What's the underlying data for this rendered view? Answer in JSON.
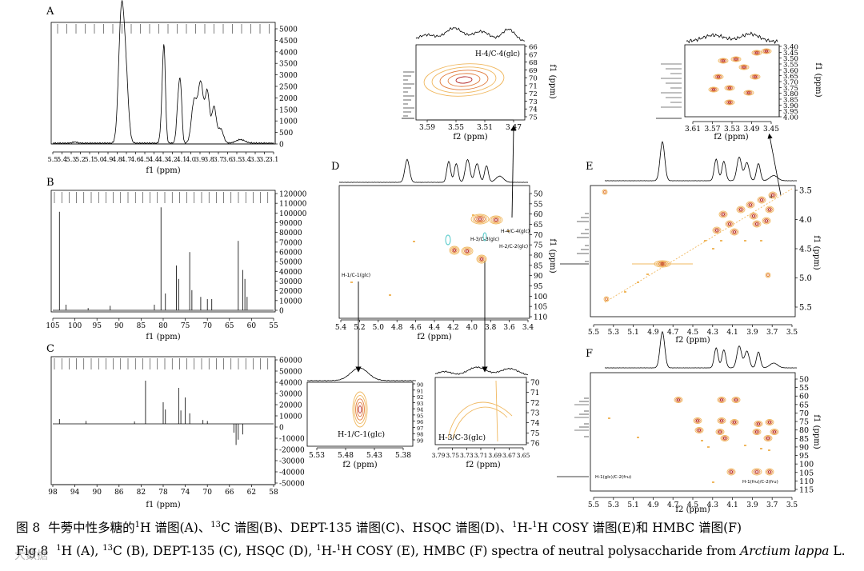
{
  "figure": {
    "caption_zh": {
      "fig_no": "图 8",
      "text": "牛蒡中性多糖的",
      "h_sup": "1",
      "part_a": "H 谱图(A)、",
      "c_sup": "13",
      "part_b": "C 谱图(B)、DEPT-135 谱图(C)、HSQC 谱图(D)、",
      "cosy_sup1": "1",
      "part_c": "H-",
      "cosy_sup2": "1",
      "part_d": "H COSY 谱图(E)和 HMBC 谱图(F)"
    },
    "caption_en": {
      "fig_no": "Fig.8",
      "h_sup": "1",
      "part_a": "H (A), ",
      "c_sup": "13",
      "part_b": "C (B), DEPT-135 (C), HSQC (D), ",
      "cosy_sup1": "1",
      "part_c": "H-",
      "cosy_sup2": "1",
      "part_d": "H COSY (E), HMBC (F) spectra of neutral polysaccharide from ",
      "species": "Arctium lappa",
      "end": " L."
    },
    "watermark": "大数据"
  },
  "panels": {
    "A": {
      "label": "A",
      "xlabel": "f1 (ppm)",
      "xticks": [
        "5.5",
        "5.4",
        "5.3",
        "5.2",
        "5.1",
        "5.0",
        "4.9",
        "4.8",
        "4.7",
        "4.6",
        "4.5",
        "4.4",
        "4.3",
        "4.2",
        "4.1",
        "4.0",
        "3.9",
        "3.8",
        "3.7",
        "3.6",
        "3.5",
        "3.4",
        "3.3",
        "3.2",
        "3.1"
      ],
      "yticks": [
        "5000",
        "4500",
        "4000",
        "3500",
        "3000",
        "2500",
        "2000",
        "1500",
        "1000",
        "500",
        "0"
      ]
    },
    "B": {
      "label": "B",
      "xlabel": "f1 (ppm)",
      "xticks": [
        "105",
        "100",
        "95",
        "90",
        "85",
        "80",
        "75",
        "70",
        "65",
        "60",
        "55"
      ],
      "yticks": [
        "120000",
        "110000",
        "100000",
        "90000",
        "80000",
        "70000",
        "60000",
        "50000",
        "40000",
        "30000",
        "20000",
        "10000",
        "0"
      ]
    },
    "C": {
      "label": "C",
      "xlabel": "f1 (ppm)",
      "xticks": [
        "98",
        "94",
        "90",
        "86",
        "82",
        "78",
        "74",
        "70",
        "66",
        "62",
        "58"
      ],
      "yticks": [
        "60000",
        "50000",
        "40000",
        "30000",
        "20000",
        "10000",
        "0",
        "-10000",
        "-20000",
        "-30000",
        "-40000",
        "-50000"
      ]
    },
    "D": {
      "label": "D",
      "xlabel": "f2 (ppm)",
      "ylabel": "f1 (ppm)",
      "xticks": [
        "5.4",
        "5.2",
        "5.0",
        "4.8",
        "4.6",
        "4.4",
        "4.2",
        "4.0",
        "3.8",
        "3.6",
        "3.4"
      ],
      "yticks": [
        "50",
        "55",
        "60",
        "65",
        "70",
        "75",
        "80",
        "85",
        "90",
        "95",
        "100",
        "105",
        "110"
      ],
      "annotations": [
        "H-4/C-4(glc)",
        "H-3/C-3(glc)",
        "H-2/C-2(glc)",
        "H-1/C-1(glc)"
      ]
    },
    "D_inset_top": {
      "annotation": "H-4/C-4(glc)",
      "xlabel": "f2 (ppm)",
      "ylabel": "f1 (ppm)",
      "xticks": [
        "3.59",
        "3.55",
        "3.51",
        "3.47"
      ],
      "yticks": [
        "66",
        "67",
        "68",
        "69",
        "70",
        "71",
        "72",
        "73",
        "74",
        "75"
      ]
    },
    "D_inset_h1": {
      "annotation": "H-1/C-1(glc)",
      "xlabel": "f2 (ppm)",
      "xticks": [
        "5.53",
        "5.48",
        "5.43",
        "5.38"
      ],
      "yticks": [
        "90",
        "91",
        "92",
        "93",
        "94",
        "95",
        "96",
        "97",
        "98",
        "99"
      ]
    },
    "D_inset_h3": {
      "annotation": "H-3/C-3(glc)",
      "xlabel": "f2 (ppm)",
      "xticks": [
        "3.79",
        "3.75",
        "3.73",
        "3.71",
        "3.69",
        "3.67",
        "3.65"
      ],
      "yticks": [
        "70",
        "71",
        "72",
        "73",
        "74",
        "75",
        "76"
      ]
    },
    "E": {
      "label": "E",
      "xlabel": "f2 (ppm)",
      "ylabel": "f1 (ppm)",
      "xticks": [
        "5.5",
        "5.3",
        "5.1",
        "4.9",
        "4.7",
        "4.5",
        "4.3",
        "4.1",
        "3.9",
        "3.7",
        "3.5"
      ],
      "yticks": [
        "3.5",
        "4.0",
        "4.5",
        "5.0",
        "5.5"
      ]
    },
    "E_inset": {
      "xlabel": "f2 (ppm)",
      "ylabel": "f1 (ppm)",
      "xticks": [
        "3.61",
        "3.57",
        "3.53",
        "3.49",
        "3.45"
      ],
      "yticks": [
        "3.40",
        "3.45",
        "3.50",
        "3.55",
        "3.60",
        "3.65",
        "3.70",
        "3.75",
        "3.80",
        "3.85",
        "3.90",
        "3.95",
        "4.00"
      ]
    },
    "F": {
      "label": "F",
      "xlabel": "f2 (ppm)",
      "ylabel": "f1 (ppm)",
      "xticks": [
        "5.5",
        "5.3",
        "5.1",
        "4.9",
        "4.7",
        "4.5",
        "4.3",
        "4.1",
        "3.9",
        "3.7",
        "3.5"
      ],
      "yticks": [
        "50",
        "55",
        "60",
        "65",
        "70",
        "75",
        "80",
        "85",
        "90",
        "95",
        "100",
        "105",
        "110",
        "115"
      ],
      "annotations": [
        "H-1(glc)/C-2(fru)",
        "H-1(fru)/C-2(fru)"
      ]
    }
  },
  "colors": {
    "contour_dark": "#b22222",
    "contour_light": "#f0b860",
    "contour_mid": "#e07a3a",
    "cyan": "#50c8c8",
    "line": "#000000"
  }
}
